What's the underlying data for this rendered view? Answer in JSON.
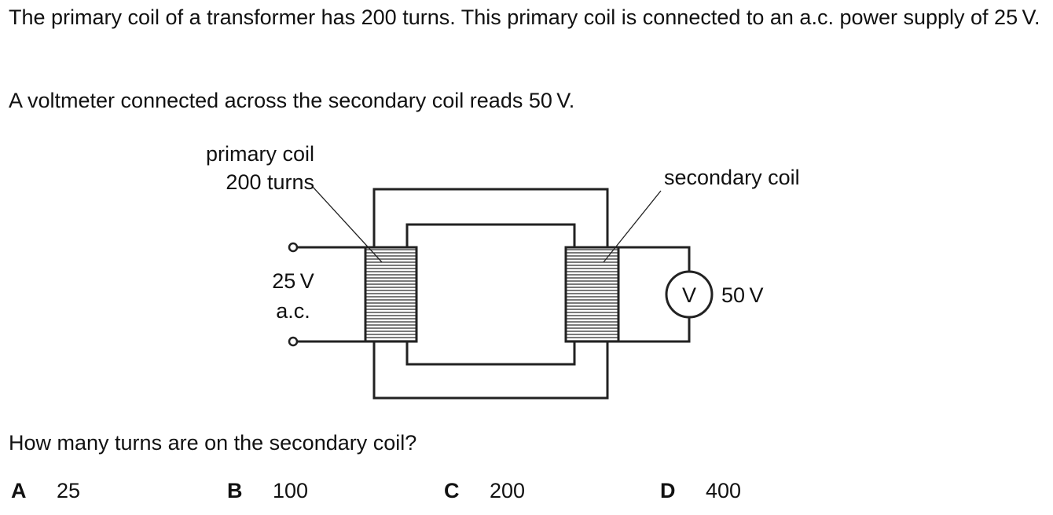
{
  "question": {
    "intro": "The primary coil of a transformer has 200 turns. This primary coil is connected to an a.c. power supply of 25 V.",
    "reading": "A voltmeter connected across the secondary coil reads 50 V.",
    "prompt": "How many turns are on the secondary coil?"
  },
  "diagram": {
    "primary_label_line1": "primary coil",
    "primary_label_line2": "200 turns",
    "secondary_label": "secondary coil",
    "supply_voltage": "25 V",
    "supply_type": "a.c.",
    "meter_symbol": "V",
    "meter_reading": "50 V"
  },
  "options": [
    {
      "letter": "A",
      "value": "25"
    },
    {
      "letter": "B",
      "value": "100"
    },
    {
      "letter": "C",
      "value": "200"
    },
    {
      "letter": "D",
      "value": "400"
    }
  ]
}
